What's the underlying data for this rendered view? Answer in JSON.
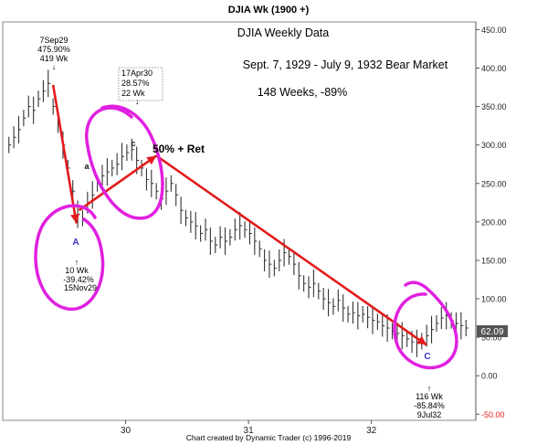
{
  "chart_data": {
    "type": "line",
    "title": "DJIA Wk (1900 +)",
    "subtitle_lines": [
      "DJIA Weekly Data",
      "Sept. 7, 1929 - July 9, 1932 Bear Market",
      "148 Weeks,  -89%"
    ],
    "credit": "Chart created by Dynamic Trader  (c) 1996-2019",
    "x_ticks": [
      {
        "label": "30",
        "x": 1930.0
      },
      {
        "label": "31",
        "x": 1931.0
      },
      {
        "label": "32",
        "x": 1932.0
      }
    ],
    "y_ticks": [
      {
        "label": "450.00",
        "y": 450
      },
      {
        "label": "400.00",
        "y": 400
      },
      {
        "label": "350.00",
        "y": 350
      },
      {
        "label": "300.00",
        "y": 300
      },
      {
        "label": "250.00",
        "y": 250
      },
      {
        "label": "200.00",
        "y": 200
      },
      {
        "label": "150.00",
        "y": 150
      },
      {
        "label": "100.00",
        "y": 100
      },
      {
        "label": "50.00",
        "y": 50
      },
      {
        "label": "0.00",
        "y": 0
      },
      {
        "label": "-50.00",
        "y": -50
      }
    ],
    "ylim": [
      -58,
      460
    ],
    "xlim": [
      1929.0,
      1932.85
    ],
    "last_value": "62.09",
    "grid": false,
    "series": [
      {
        "x": [
          1929.05,
          1929.09,
          1929.13,
          1929.17,
          1929.21,
          1929.25,
          1929.29,
          1929.33,
          1929.37,
          1929.41,
          1929.45,
          1929.49,
          1929.53,
          1929.57,
          1929.61,
          1929.65,
          1929.69,
          1929.73,
          1929.77,
          1929.81,
          1929.85,
          1929.89,
          1929.93,
          1929.97,
          1930.01,
          1930.05,
          1930.09,
          1930.13,
          1930.17,
          1930.21,
          1930.25,
          1930.29,
          1930.33,
          1930.37,
          1930.41,
          1930.45,
          1930.49,
          1930.53,
          1930.57,
          1930.61,
          1930.65,
          1930.69,
          1930.73,
          1930.77,
          1930.81,
          1930.85,
          1930.89,
          1930.93,
          1930.97,
          1931.01,
          1931.05,
          1931.09,
          1931.13,
          1931.17,
          1931.21,
          1931.25,
          1931.29,
          1931.33,
          1931.37,
          1931.41,
          1931.45,
          1931.49,
          1931.53,
          1931.57,
          1931.61,
          1931.65,
          1931.69,
          1931.73,
          1931.77,
          1931.81,
          1931.85,
          1931.89,
          1931.93,
          1931.97,
          1932.01,
          1932.05,
          1932.09,
          1932.13,
          1932.17,
          1932.21,
          1932.25,
          1932.29,
          1932.33,
          1932.37,
          1932.41,
          1932.45,
          1932.49,
          1932.53,
          1932.57,
          1932.61,
          1932.65,
          1932.69,
          1932.73,
          1932.77
        ],
        "y": [
          300,
          310,
          320,
          335,
          350,
          345,
          360,
          370,
          380,
          350,
          330,
          300,
          270,
          240,
          210,
          205,
          225,
          235,
          250,
          260,
          265,
          270,
          275,
          285,
          290,
          294,
          280,
          270,
          255,
          250,
          240,
          230,
          240,
          250,
          235,
          215,
          205,
          200,
          195,
          185,
          190,
          175,
          170,
          180,
          175,
          180,
          190,
          195,
          190,
          185,
          175,
          165,
          150,
          145,
          140,
          150,
          160,
          155,
          145,
          130,
          120,
          115,
          120,
          110,
          100,
          95,
          90,
          98,
          88,
          80,
          82,
          78,
          80,
          76,
          72,
          70,
          65,
          62,
          58,
          55,
          52,
          48,
          44,
          42,
          45,
          52,
          60,
          68,
          75,
          78,
          72,
          68,
          65,
          62
        ]
      }
    ],
    "arrows": [
      {
        "from": [
          1929.41,
          378
        ],
        "to": [
          1929.6,
          198
        ]
      },
      {
        "from": [
          1929.62,
          215
        ],
        "to": [
          1930.25,
          286
        ]
      },
      {
        "from": [
          1930.25,
          286
        ],
        "to": [
          1932.45,
          40
        ]
      }
    ],
    "callouts": [
      {
        "lines": [
          "7Sep29",
          "475.90%",
          "419 Wk"
        ]
      },
      {
        "lines": [
          "17Apr30",
          "28.57%",
          "22 Wk"
        ]
      },
      {
        "lines": [
          "10 Wk",
          "-39.42%",
          "15Nov29"
        ]
      },
      {
        "lines": [
          "116 Wk",
          "-85.84%",
          "9Jul32"
        ]
      }
    ],
    "wave_labels": [
      "A",
      "a",
      "c",
      "C"
    ],
    "note": "50% + Ret",
    "colors": {
      "price": "#333333",
      "arrow": "#e31b1b",
      "circle": "#e020e0",
      "wave": "#3a2fc0",
      "last_box": "#555555",
      "neg_axis": "#e02020"
    }
  }
}
